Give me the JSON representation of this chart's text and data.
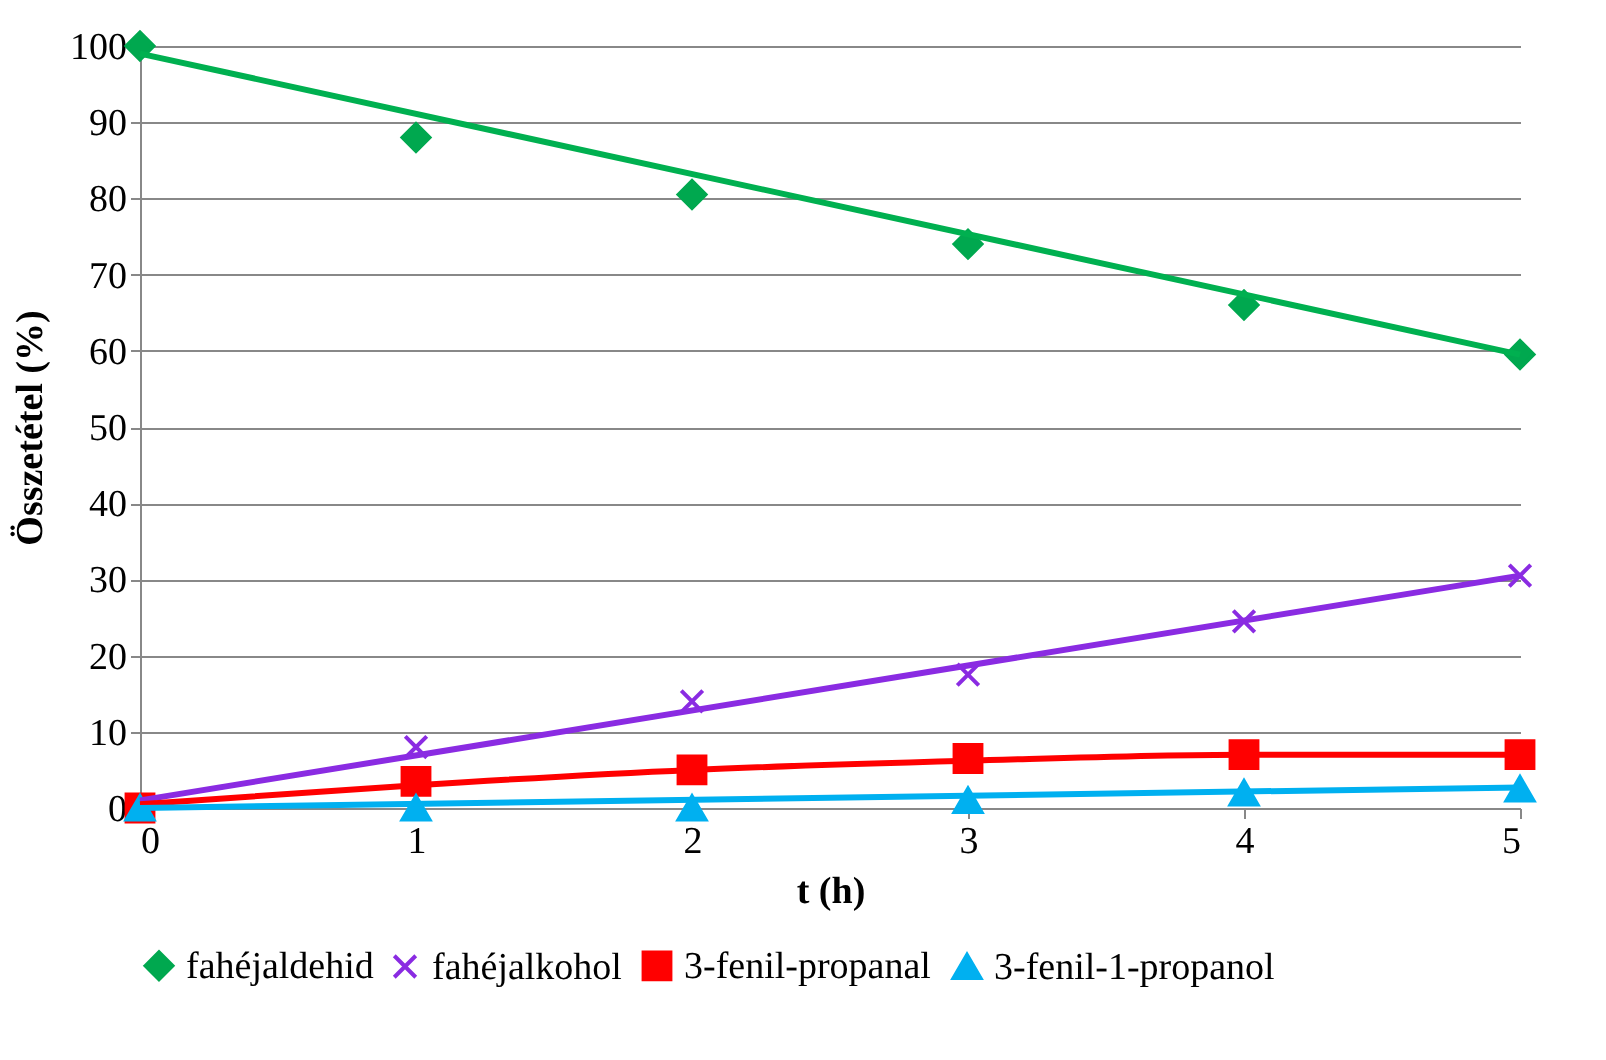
{
  "chart_data": {
    "type": "scatter",
    "xlabel": "t (h)",
    "ylabel": "Összetétel (%)",
    "x": [
      0,
      1,
      2,
      3,
      4,
      5
    ],
    "series": [
      {
        "name": "fahéjaldehid",
        "color": "#00a84f",
        "marker": "diamond",
        "values": [
          100,
          88,
          80.5,
          74,
          66,
          59.5
        ]
      },
      {
        "name": "fahéjalkohol",
        "color": "#8a2be2",
        "marker": "cross",
        "values": [
          null,
          8,
          14,
          17.5,
          24.5,
          30.5
        ]
      },
      {
        "name": "3-fenil-propanal",
        "color": "#ff0000",
        "marker": "square",
        "values": [
          0,
          3.5,
          5,
          6.5,
          7,
          7
        ]
      },
      {
        "name": "3-fenil-1-propanol",
        "color": "#00b0f0",
        "marker": "triangle",
        "values": [
          0,
          0,
          0,
          1,
          2,
          2.5
        ]
      },
      {
        "type": "line",
        "color": "#00b050",
        "x": [
          0,
          5
        ],
        "values": [
          99,
          59.5
        ]
      },
      {
        "type": "line",
        "color": "#8a2be2",
        "x": [
          0,
          5
        ],
        "values": [
          1,
          30.5
        ]
      },
      {
        "type": "line",
        "color": "#ff0000",
        "x": [
          0,
          1,
          2,
          3,
          4,
          5
        ],
        "values": [
          0.5,
          3,
          5,
          6.2,
          7,
          7
        ]
      },
      {
        "type": "line",
        "color": "#00b0f0",
        "x": [
          0,
          5
        ],
        "values": [
          0,
          2.7
        ]
      }
    ],
    "xlim": [
      0,
      5
    ],
    "xticks": [
      0,
      1,
      2,
      3,
      4,
      5
    ],
    "ylim": [
      0,
      100
    ],
    "yticks": [
      0,
      10,
      20,
      30,
      40,
      50,
      60,
      70,
      80,
      90,
      100
    ],
    "grid": "y",
    "legend": "bottom"
  }
}
